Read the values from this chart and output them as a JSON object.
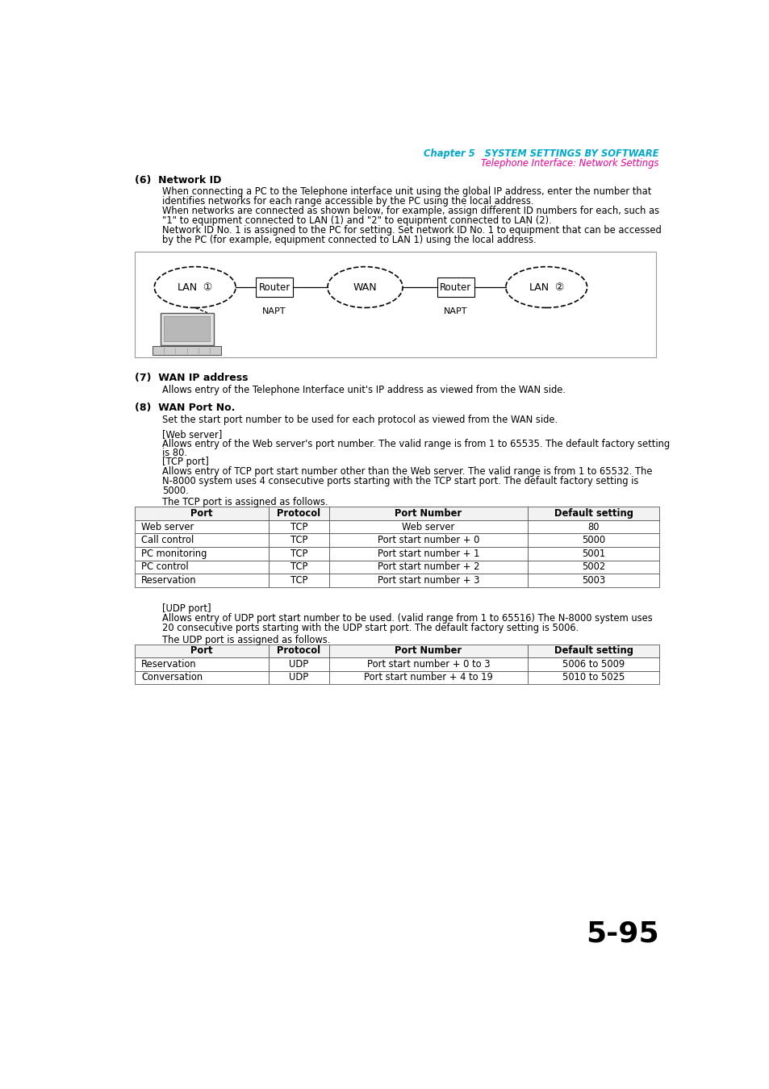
{
  "page_header_ch": "Chapter 5   SYSTEM SETTINGS BY SOFTWARE",
  "page_header_sub": "Telephone Interface: Network Settings",
  "header_ch_color": "#00AACC",
  "header_sub_color": "#EE0099",
  "section6_title": "(6)  Network ID",
  "section6_body": [
    "When connecting a PC to the Telephone interface unit using the global IP address, enter the number that",
    "identifies networks for each range accessible by the PC using the local address.",
    "When networks are connected as shown below, for example, assign different ID numbers for each, such as",
    "\"1\" to equipment connected to LAN (1) and \"2\" to equipment connected to LAN (2).",
    "Network ID No. 1 is assigned to the PC for setting. Set network ID No. 1 to equipment that can be accessed",
    "by the PC (for example, equipment connected to LAN 1) using the local address."
  ],
  "section7_title": "(7)  WAN IP address",
  "section7_body": "Allows entry of the Telephone Interface unit's IP address as viewed from the WAN side.",
  "section8_title": "(8)  WAN Port No.",
  "section8_body": "Set the start port number to be used for each protocol as viewed from the WAN side.",
  "web_server_label": "[Web server]",
  "web_server_body1": "Allows entry of the Web server's port number. The valid range is from 1 to 65535. The default factory setting",
  "web_server_body2": "is 80.",
  "tcp_port_label": "[TCP port]",
  "tcp_port_body1": "Allows entry of TCP port start number other than the Web server. The valid range is from 1 to 65532. The",
  "tcp_port_body2": "N-8000 system uses 4 consecutive ports starting with the TCP start port. The default factory setting is",
  "tcp_port_body3": "5000.",
  "tcp_assign_text": "The TCP port is assigned as follows.",
  "tcp_table_headers": [
    "Port",
    "Protocol",
    "Port Number",
    "Default setting"
  ],
  "tcp_table_rows": [
    [
      "Web server",
      "TCP",
      "Web server",
      "80"
    ],
    [
      "Call control",
      "TCP",
      "Port start number + 0",
      "5000"
    ],
    [
      "PC monitoring",
      "TCP",
      "Port start number + 1",
      "5001"
    ],
    [
      "PC control",
      "TCP",
      "Port start number + 2",
      "5002"
    ],
    [
      "Reservation",
      "TCP",
      "Port start number + 3",
      "5003"
    ]
  ],
  "udp_port_label": "[UDP port]",
  "udp_port_body1": "Allows entry of UDP port start number to be used. (valid range from 1 to 65516) The N-8000 system uses",
  "udp_port_body2": "20 consecutive ports starting with the UDP start port. The default factory setting is 5006.",
  "udp_assign_text": "The UDP port is assigned as follows.",
  "udp_table_headers": [
    "Port",
    "Protocol",
    "Port Number",
    "Default setting"
  ],
  "udp_table_rows": [
    [
      "Reservation",
      "UDP",
      "Port start number + 0 to 3",
      "5006 to 5009"
    ],
    [
      "Conversation",
      "UDP",
      "Port start number + 4 to 19",
      "5010 to 5025"
    ]
  ],
  "page_number": "5-95",
  "bg_color": "#ffffff",
  "text_color": "#000000"
}
